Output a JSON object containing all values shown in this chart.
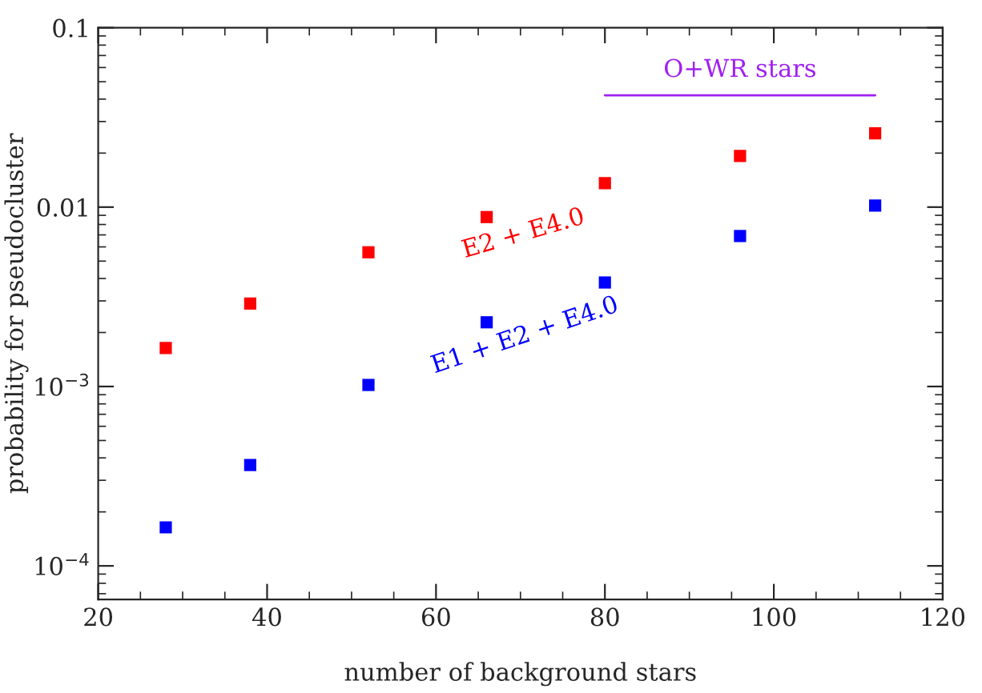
{
  "chart_data": {
    "type": "scatter",
    "xlabel": "number of background stars",
    "ylabel": "probability for pseudocluster",
    "log": "y",
    "marker": "square",
    "grid": false,
    "legend": false,
    "x": [
      28,
      38,
      52,
      66,
      80,
      96,
      112
    ],
    "xlim": [
      20,
      120
    ],
    "xticks": [
      20,
      40,
      60,
      80,
      100,
      120
    ],
    "ylim": [
      6.5e-05,
      0.1
    ],
    "yticks": [
      {
        "value": 0.0001,
        "label": "10$^{−4}$"
      },
      {
        "value": 0.001,
        "label": "10$^{−3}$"
      },
      0.01,
      0.1
    ],
    "series": [
      {
        "name": "E2 + E4.0",
        "color": "#ff0000",
        "values": [
          0.00164,
          0.0029,
          0.0056,
          0.0088,
          0.0136,
          0.0193,
          0.0258
        ]
      },
      {
        "name": "E1 + E2 + E4.0",
        "color": "#0000ff",
        "values": [
          0.000164,
          0.000365,
          0.00102,
          0.00228,
          0.0038,
          0.0069,
          0.0102
        ]
      },
      {
        "type": "line",
        "marker": "none",
        "color": "#a020f0",
        "x": [
          80,
          112
        ],
        "values": [
          0.042,
          0.042
        ]
      }
    ],
    "annotations": [
      {
        "text": "O+WR stars",
        "x": 96,
        "y": 0.042
      }
    ]
  }
}
